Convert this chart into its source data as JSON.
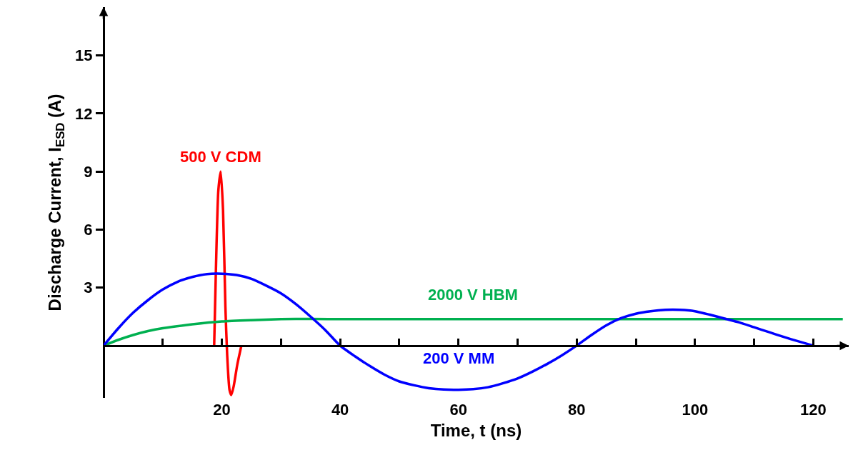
{
  "chart_data": {
    "type": "line",
    "xlabel": "Time, t (ns)",
    "ylabel": "Discharge Current, I$_{ESD}$ (A)",
    "xlim": [
      0,
      126
    ],
    "ylim": [
      -2.7,
      17.5
    ],
    "xticks": [
      {
        "value": 10,
        "label": null
      },
      20,
      {
        "value": 30,
        "label": null
      },
      40,
      {
        "value": 50,
        "label": null
      },
      60,
      {
        "value": 70,
        "label": null
      },
      80,
      {
        "value": 90,
        "label": null
      },
      100,
      {
        "value": 110,
        "label": null
      },
      120
    ],
    "yticks": [
      3,
      6,
      9,
      12,
      15
    ],
    "grid": false,
    "legend": false,
    "marker": "none",
    "line_style": "solid",
    "series": [
      {
        "name": "500 V CDM",
        "color": "#ff0000",
        "x": [
          18.7,
          19.0,
          19.4,
          19.8,
          20.2,
          20.6,
          20.9,
          21.3,
          21.6,
          22.0,
          22.6,
          23.3
        ],
        "values": [
          0,
          4,
          8,
          9,
          7,
          2,
          -0.5,
          -2.3,
          -2.55,
          -2.1,
          -1,
          0
        ]
      },
      {
        "name": "2000 V HBM",
        "color": "#00b050",
        "x": [
          0,
          2.5,
          5,
          7.5,
          10,
          15,
          20,
          25,
          30,
          35,
          40,
          125
        ],
        "values": [
          0,
          0.3,
          0.55,
          0.75,
          0.9,
          1.1,
          1.25,
          1.32,
          1.37,
          1.38,
          1.37,
          1.37
        ]
      },
      {
        "name": "200 V MM",
        "color": "#0000ff",
        "x": [
          0,
          2.5,
          5,
          7.5,
          10,
          12.5,
          15,
          17.5,
          20,
          22.5,
          25,
          27.5,
          30,
          32.5,
          35,
          37.5,
          40,
          42.5,
          45,
          47.5,
          50,
          52.5,
          55,
          57.5,
          60,
          62.5,
          65,
          67.5,
          70,
          72.5,
          75,
          77.5,
          80,
          82.5,
          85,
          87.5,
          90,
          92.5,
          95,
          97.5,
          100,
          102.5,
          105,
          107.5,
          110,
          112.5,
          115,
          117.5,
          120
        ],
        "values": [
          0,
          0.9,
          1.7,
          2.35,
          2.9,
          3.3,
          3.55,
          3.7,
          3.72,
          3.65,
          3.45,
          3.1,
          2.7,
          2.15,
          1.5,
          0.8,
          0,
          -0.55,
          -1.05,
          -1.5,
          -1.85,
          -2.05,
          -2.2,
          -2.27,
          -2.28,
          -2.25,
          -2.15,
          -1.95,
          -1.7,
          -1.35,
          -0.95,
          -0.5,
          0,
          0.55,
          1.05,
          1.42,
          1.65,
          1.78,
          1.85,
          1.85,
          1.78,
          1.6,
          1.4,
          1.2,
          0.95,
          0.7,
          0.45,
          0.22,
          0
        ]
      }
    ]
  }
}
